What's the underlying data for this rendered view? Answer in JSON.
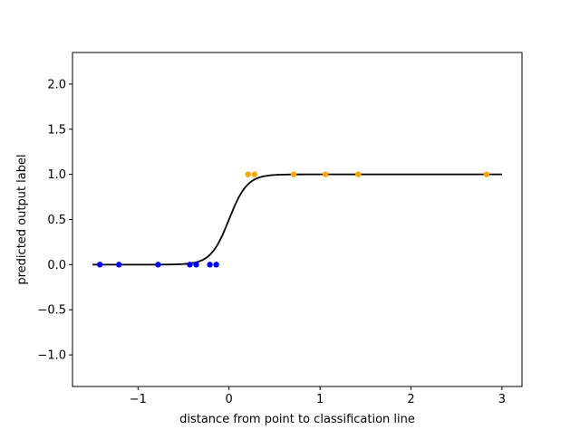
{
  "chart_data": {
    "type": "scatter",
    "xlabel": "distance from point to classification line",
    "ylabel": "predicted output label",
    "xlim": [
      -1.72,
      3.22
    ],
    "ylim": [
      -1.35,
      2.35
    ],
    "xticks": [
      -1,
      0,
      1,
      2,
      3
    ],
    "xtick_labels": [
      "−1",
      "0",
      "1",
      "2",
      "3"
    ],
    "yticks": [
      -1.0,
      -0.5,
      0.0,
      0.5,
      1.0,
      1.5,
      2.0
    ],
    "ytick_labels": [
      "−1.0",
      "−0.5",
      "0.0",
      "0.5",
      "1.0",
      "1.5",
      "2.0"
    ],
    "grid": false,
    "curve": {
      "kind": "sigmoid",
      "color": "#000000",
      "x_range": [
        -1.5,
        3.0
      ],
      "steepness": 10,
      "values_at": {
        "x": [
          -1.5,
          -0.5,
          0,
          0.5,
          1.0,
          3.0
        ],
        "y": [
          0.0,
          0.007,
          0.5,
          0.993,
          1.0,
          1.0
        ]
      }
    },
    "series": [
      {
        "color": "#0000ff",
        "x": [
          -1.42,
          -1.21,
          -0.78,
          -0.43,
          -0.36,
          -0.21,
          -0.14
        ],
        "y": [
          0,
          0,
          0,
          0,
          0,
          0,
          0
        ]
      },
      {
        "color": "#ffa500",
        "x": [
          0.21,
          0.28,
          0.71,
          1.06,
          1.42,
          2.83
        ],
        "y": [
          1,
          1,
          1,
          1,
          1,
          1
        ]
      }
    ]
  }
}
